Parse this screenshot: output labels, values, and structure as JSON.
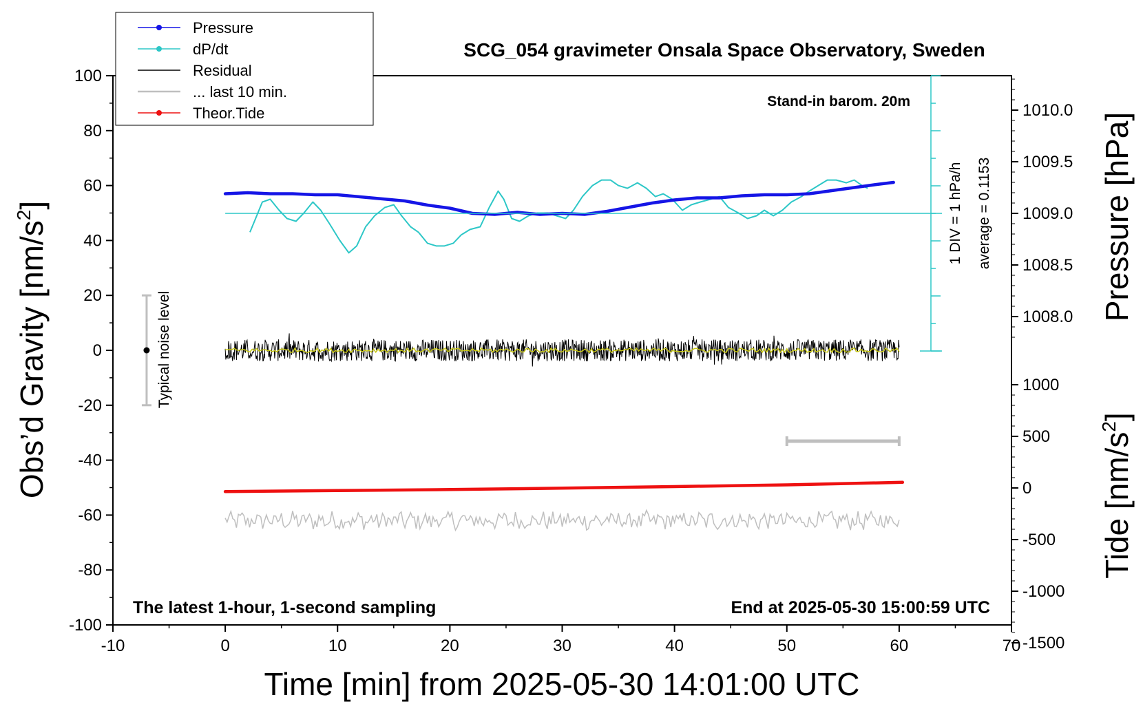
{
  "chart_data": {
    "type": "line",
    "title": "SCG_054 gravimeter Onsala Space Observatory, Sweden",
    "xlabel": "Time [min] from 2025-05-30 14:01:00 UTC",
    "ylabel": "Obs’d Gravity [nm/s",
    "ylabel_sup": "2",
    "ylabel_end": "]",
    "y2label": "Pressure [hPa]",
    "y3label": "Tide [nm/s",
    "y3label_sup": "2",
    "y3label_end": "]",
    "xlim": [
      -10,
      70
    ],
    "ylim": [
      -100,
      100
    ],
    "pressure_axis": {
      "range": [
        1007.5,
        1010.5
      ],
      "ticks": [
        "1008.0",
        "1008.5",
        "1009.0",
        "1009.5",
        "1010.0"
      ]
    },
    "tide_axis": {
      "range": [
        -1500,
        1500
      ],
      "ticks": [
        "-1500",
        "-1000",
        "-500",
        "0",
        "500",
        "1000"
      ]
    },
    "x_ticks": [
      "-10",
      "0",
      "10",
      "20",
      "30",
      "40",
      "50",
      "60",
      "70"
    ],
    "y_ticks": [
      "-100",
      "-80",
      "-60",
      "-40",
      "-20",
      "0",
      "20",
      "40",
      "60",
      "80",
      "100"
    ],
    "legend": {
      "placement": "top-left",
      "entries": [
        {
          "name": "Pressure",
          "color": "#1515e6",
          "marker": true
        },
        {
          "name": "dP/dt",
          "color": "#2dc7c7",
          "marker": true
        },
        {
          "name": "Residual",
          "color": "#000000",
          "marker": false
        },
        {
          "name": "... last 10 min.",
          "color": "#bfbfbf",
          "marker": false
        },
        {
          "name": "Theor.Tide",
          "color": "#ee1111",
          "marker": true
        }
      ]
    },
    "annotations": {
      "barometer": "Stand-in barom. 20m",
      "div_label": "1 DIV = 1 hPa/h",
      "average_label": "average = 0.1153",
      "noise_label": "Typical noise level",
      "bottom_left": "The latest 1-hour, 1-second sampling",
      "bottom_right": "End at 2025-05-30 15:00:59 UTC"
    },
    "noise_bar": {
      "x": -7,
      "y_center": 0,
      "y_range": [
        -20,
        20
      ]
    },
    "last10_bar": {
      "x_range": [
        50,
        60
      ]
    },
    "series": [
      {
        "name": "Pressure",
        "units": "hPa",
        "color": "#1515e6",
        "x": [
          0,
          2,
          4,
          6,
          8,
          10,
          12,
          14,
          16,
          18,
          20,
          22,
          24,
          26,
          28,
          30,
          32,
          34,
          36,
          38,
          40,
          42,
          44,
          46,
          48,
          50,
          52,
          54,
          56,
          58,
          59.5
        ],
        "y": [
          1009.19,
          1009.2,
          1009.19,
          1009.19,
          1009.18,
          1009.18,
          1009.16,
          1009.14,
          1009.12,
          1009.08,
          1009.05,
          1009.0,
          1008.99,
          1009.01,
          1008.99,
          1009.0,
          1008.99,
          1009.02,
          1009.06,
          1009.1,
          1009.13,
          1009.15,
          1009.15,
          1009.17,
          1009.18,
          1009.18,
          1009.19,
          1009.22,
          1009.25,
          1009.28,
          1009.3
        ]
      },
      {
        "name": "dP/dt",
        "color": "#2dc7c7",
        "x": [
          2.2,
          2.7,
          3.3,
          4.0,
          4.8,
          5.5,
          6.3,
          7.0,
          7.8,
          8.5,
          9.3,
          10.2,
          11.0,
          11.7,
          12.5,
          13.3,
          14.2,
          15.0,
          15.7,
          16.5,
          17.2,
          18.0,
          18.8,
          19.5,
          20.3,
          21.0,
          21.8,
          22.7,
          23.5,
          24.3,
          24.8,
          25.5,
          26.2,
          27.0,
          27.8,
          28.7,
          29.5,
          30.3,
          31.0,
          31.8,
          32.7,
          33.5,
          34.3,
          35.0,
          35.8,
          36.7,
          37.5,
          38.3,
          39.0,
          39.8,
          40.7,
          41.5,
          42.3,
          43.2,
          44.0,
          44.8,
          45.7,
          46.5,
          47.3,
          48.0,
          48.8,
          49.6,
          50.4,
          51.3,
          52.0,
          52.8,
          53.6,
          54.4,
          55.3,
          56.0,
          56.7,
          57.2
        ],
        "y": [
          43,
          48,
          54,
          55,
          51,
          48,
          47,
          50,
          54,
          51,
          46,
          40,
          35.5,
          38,
          45,
          49,
          52,
          53,
          49,
          45,
          43,
          39,
          38,
          38,
          39,
          42,
          44,
          45,
          52,
          58,
          55,
          48,
          47,
          49,
          50,
          50,
          49,
          48,
          51,
          56,
          60,
          62,
          62,
          60,
          59,
          61,
          59,
          56,
          57,
          55,
          51,
          53,
          54,
          55,
          56,
          52,
          50,
          48,
          49,
          51,
          49,
          51,
          54,
          56,
          58,
          60,
          62,
          62,
          61,
          62,
          60,
          59
        ]
      },
      {
        "name": "Residual",
        "color": "#000000",
        "x_range": [
          0,
          60
        ],
        "center": 0,
        "amplitude": 4
      },
      {
        "name": "... last 10 min.",
        "color": "#bfbfbf",
        "x_range": [
          0,
          60
        ],
        "center": -62,
        "amplitude": 3
      },
      {
        "name": "Theor.Tide",
        "units": "nm/s2",
        "color": "#ee1111",
        "x": [
          0,
          10,
          20,
          30,
          40,
          50,
          60.3
        ],
        "y": [
          -35,
          -25,
          -15,
          -2,
          13,
          30,
          55
        ]
      }
    ],
    "residual_smooth_color": "#c8c814",
    "zero_line_pressure": 1009.0,
    "grid": false
  }
}
